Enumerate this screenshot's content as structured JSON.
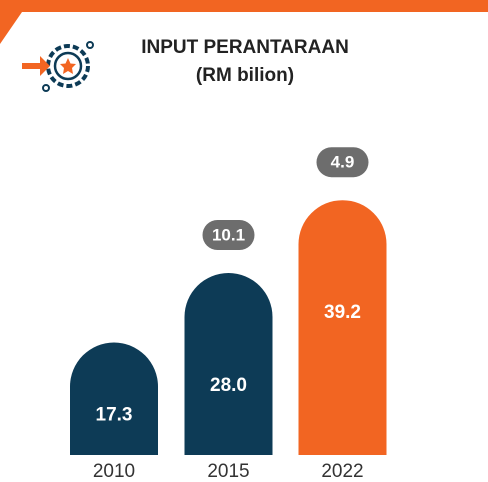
{
  "chart_data": {
    "type": "bar",
    "title": "INPUT PERANTARAAN",
    "subtitle": "(RM bilion)",
    "categories": [
      "2010",
      "2015",
      "2022"
    ],
    "values": [
      17.3,
      28.0,
      39.2
    ],
    "value_labels": [
      "17.3",
      "28.0",
      "39.2"
    ],
    "colors": [
      "#0d3b56",
      "#0d3b56",
      "#f26522"
    ],
    "annotations": [
      {
        "x": "2015",
        "text": "10.1"
      },
      {
        "x": "2022",
        "text": "4.9"
      }
    ]
  }
}
